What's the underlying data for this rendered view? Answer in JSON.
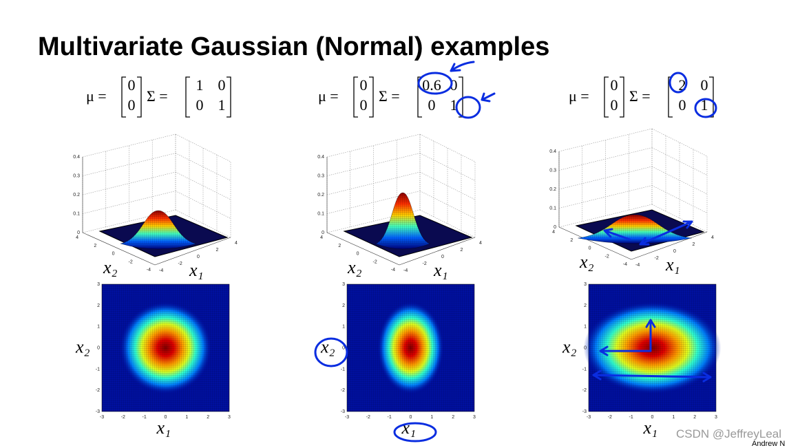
{
  "title": "Multivariate Gaussian (Normal) examples",
  "symbols": {
    "mu": "μ =",
    "sigma": "Σ ="
  },
  "axes": {
    "x1_label": "x₁",
    "x2_label": "x₂",
    "surface_zticks": [
      "0.4",
      "0.3",
      "0.2",
      "0.1",
      "0"
    ],
    "surface_x2_ticks": [
      "4",
      "2",
      "0",
      "-2",
      "-4"
    ],
    "surface_x1_ticks": [
      "-4",
      "-2",
      "0",
      "2",
      "4"
    ],
    "heatmap_yticks": [
      "3",
      "2",
      "1",
      "0",
      "-1",
      "-2",
      "-3"
    ],
    "heatmap_xticks": [
      "-3",
      "-2",
      "-1",
      "0",
      "1",
      "2",
      "3"
    ]
  },
  "panels": [
    {
      "mu": [
        "0",
        "0"
      ],
      "sigma": [
        [
          "1",
          "0"
        ],
        [
          "0",
          "1"
        ]
      ]
    },
    {
      "mu": [
        "0",
        "0"
      ],
      "sigma": [
        [
          "0.6",
          "0"
        ],
        [
          "0",
          "1"
        ]
      ]
    },
    {
      "mu": [
        "0",
        "0"
      ],
      "sigma": [
        [
          "2",
          "0"
        ],
        [
          "0",
          "1"
        ]
      ]
    }
  ],
  "watermark": "CSDN @JeffreyLeal",
  "footer": "Andrew N"
}
